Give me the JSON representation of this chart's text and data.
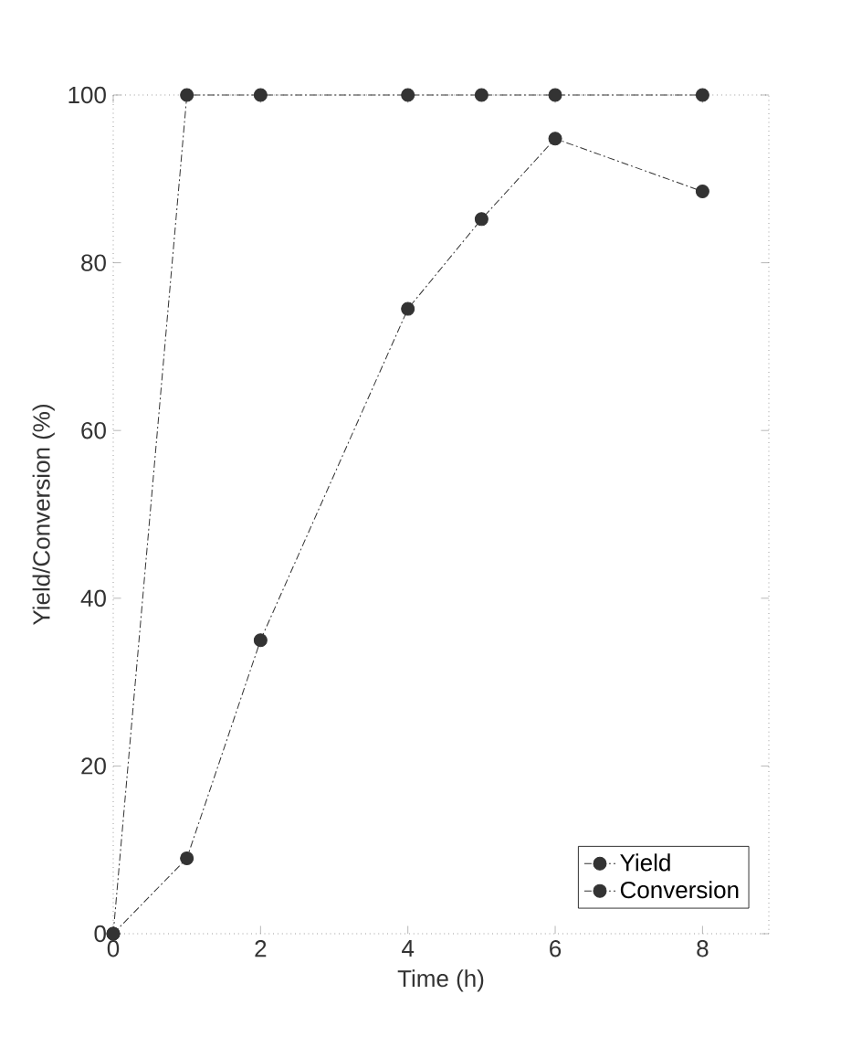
{
  "chart_data": {
    "type": "line",
    "xlabel": "Time (h)",
    "ylabel": "Yield/Conversion (%)",
    "x": [
      0,
      1,
      2,
      4,
      5,
      6,
      8
    ],
    "series": [
      {
        "name": "Yield",
        "color": "#333333",
        "values": [
          0,
          9,
          35,
          74.5,
          85.2,
          94.8,
          88.5
        ]
      },
      {
        "name": "Conversion",
        "color": "#333333",
        "values": [
          0,
          100,
          100,
          100,
          100,
          100,
          100
        ]
      }
    ],
    "xlim": [
      0,
      8.9
    ],
    "ylim": [
      0,
      100
    ],
    "xticks": [
      0,
      2,
      4,
      6,
      8
    ],
    "yticks": [
      0,
      20,
      40,
      60,
      80,
      100
    ],
    "grid": false,
    "legend": "bottom right",
    "marker": "circle",
    "line_style": "dashed"
  }
}
